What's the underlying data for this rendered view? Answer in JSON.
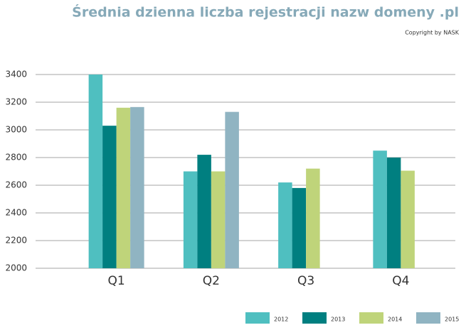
{
  "chart_data": {
    "type": "bar",
    "title": "Średnia dzienna liczba rejestracji nazw domeny .pl",
    "subtitle": "Copyright by NASK",
    "categories": [
      "Q1",
      "Q2",
      "Q3",
      "Q4"
    ],
    "series": [
      {
        "name": "2012",
        "color": "#4fbfc0",
        "values": [
          3400,
          2700,
          2620,
          2850
        ]
      },
      {
        "name": "2013",
        "color": "#007f80",
        "values": [
          3030,
          2820,
          2580,
          2800
        ]
      },
      {
        "name": "2014",
        "color": "#bfd47a",
        "values": [
          3160,
          2700,
          2720,
          2705
        ]
      },
      {
        "name": "2015",
        "color": "#90b4c2",
        "values": [
          3165,
          3130,
          null,
          null
        ]
      }
    ],
    "ylim": [
      2000,
      3400
    ],
    "yticks": [
      2000,
      2200,
      2400,
      2600,
      2800,
      3000,
      3200,
      3400
    ],
    "grid": true,
    "legend": "bottom-right"
  }
}
